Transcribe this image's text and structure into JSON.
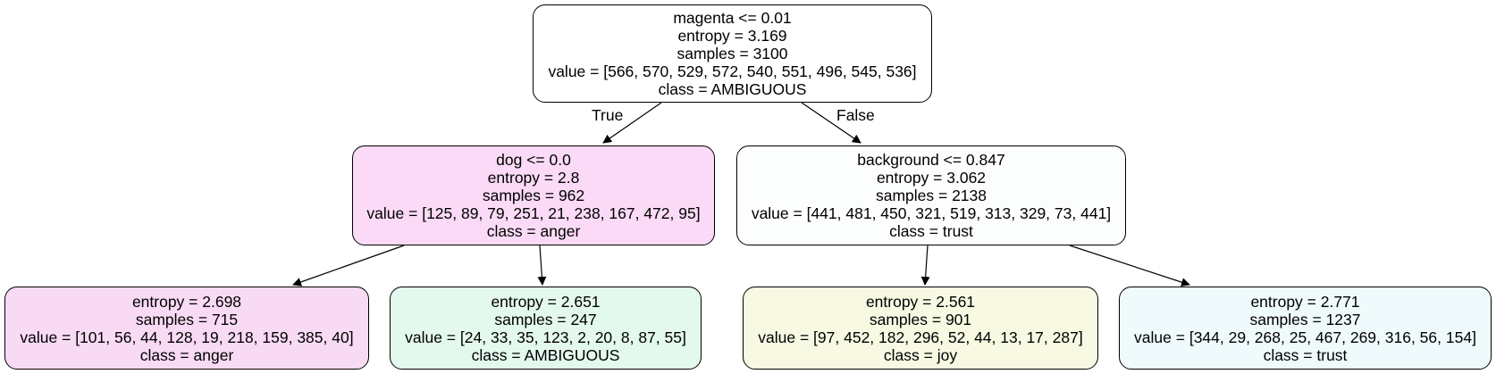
{
  "tree": {
    "nodes": [
      {
        "id": "n0",
        "fill": "#ffffff",
        "lines": [
          "magenta <= 0.01",
          "entropy = 3.169",
          "samples = 3100",
          "value = [566, 570, 529, 572, 540, 551, 496, 545, 536]",
          "class = AMBIGUOUS"
        ]
      },
      {
        "id": "n1",
        "fill": "#fadaf6",
        "lines": [
          "dog <= 0.0",
          "entropy = 2.8",
          "samples = 962",
          "value = [125, 89, 79, 251, 21, 238, 167, 472, 95]",
          "class = anger"
        ]
      },
      {
        "id": "n2",
        "fill": "#fcfefd",
        "lines": [
          "background <= 0.847",
          "entropy = 3.062",
          "samples = 2138",
          "value = [441, 481, 450, 321, 519, 313, 329, 73, 441]",
          "class = trust"
        ]
      },
      {
        "id": "n3",
        "fill": "#f9daf5",
        "lines": [
          "entropy = 2.698",
          "samples = 715",
          "value = [101, 56, 44, 128, 19, 218, 159, 385, 40]",
          "class = anger"
        ]
      },
      {
        "id": "n4",
        "fill": "#e4f9ee",
        "lines": [
          "entropy = 2.651",
          "samples = 247",
          "value = [24, 33, 35, 123, 2, 20, 8, 87, 55]",
          "class = AMBIGUOUS"
        ]
      },
      {
        "id": "n5",
        "fill": "#f8f9e3",
        "lines": [
          "entropy = 2.561",
          "samples = 901",
          "value = [97, 452, 182, 296, 52, 44, 13, 17, 287]",
          "class = joy"
        ]
      },
      {
        "id": "n6",
        "fill": "#effafc",
        "lines": [
          "entropy = 2.771",
          "samples = 1237",
          "value = [344, 29, 268, 25, 467, 269, 316, 56, 154]",
          "class = trust"
        ]
      }
    ],
    "edges": [
      {
        "from": "n0",
        "to": "n1",
        "label": "True"
      },
      {
        "from": "n0",
        "to": "n2",
        "label": "False"
      },
      {
        "from": "n1",
        "to": "n3"
      },
      {
        "from": "n1",
        "to": "n4"
      },
      {
        "from": "n2",
        "to": "n5"
      },
      {
        "from": "n2",
        "to": "n6"
      }
    ]
  }
}
